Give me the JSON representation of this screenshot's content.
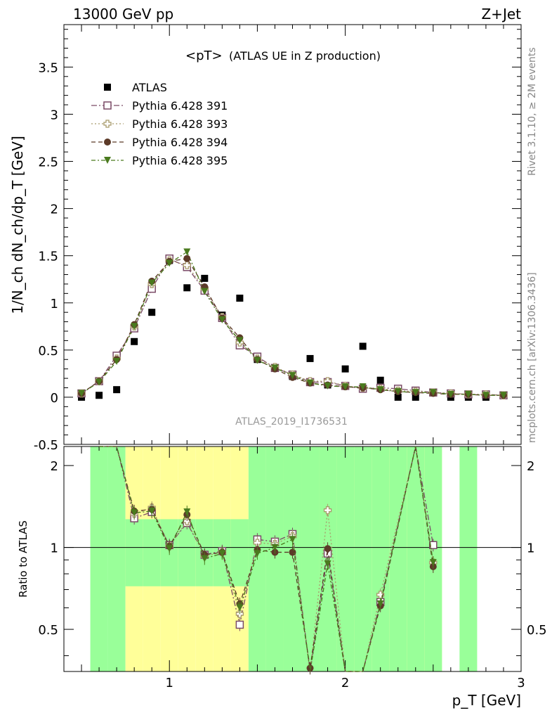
{
  "header": {
    "left": "13000 GeV pp",
    "right": "Z+Jet"
  },
  "side_labels": {
    "rivet": "Rivet 3.1.10, ≥ 2M events",
    "mcplots": "mcplots.cern.ch [arXiv:1306.3436]"
  },
  "chart_data": {
    "type": "scatter",
    "title": "<pT>",
    "subtitle": "(ATLAS UE in Z production)",
    "watermark": "ATLAS_2019_I1736531",
    "xlabel": "p_T [GeV]",
    "ylabel": "1/N_ch dN_ch/dp_T [GeV]",
    "ratio_ylabel": "Ratio to ATLAS",
    "xlim": [
      0.4,
      3.0
    ],
    "ylim": [
      -0.5,
      3.95
    ],
    "ratio_ylim": [
      0.35,
      2.35
    ],
    "x_ticks": [
      "1",
      "2",
      "3"
    ],
    "y_ticks": [
      "0",
      "0.5",
      "1",
      "1.5",
      "2",
      "2.5",
      "3",
      "3.5",
      "-0.5"
    ],
    "ratio_ticks": [
      "0.5",
      "1",
      "2"
    ],
    "legend_placement": "top-left",
    "x": [
      0.5,
      0.6,
      0.7,
      0.8,
      0.9,
      1.0,
      1.1,
      1.2,
      1.3,
      1.4,
      1.5,
      1.6,
      1.7,
      1.8,
      1.9,
      2.0,
      2.1,
      2.2,
      2.3,
      2.4,
      2.5,
      2.6,
      2.7,
      2.8,
      2.9
    ],
    "series": [
      {
        "name": "ATLAS",
        "color": "#000000",
        "marker": "square-filled",
        "values": [
          0.0,
          0.02,
          0.08,
          0.59,
          0.9,
          1.45,
          1.16,
          1.26,
          0.87,
          1.05,
          0.4,
          0.31,
          0.22,
          0.41,
          0.13,
          0.3,
          0.54,
          0.18,
          0.0,
          0.0,
          0.05,
          0.0,
          0.0,
          0.0,
          0.02
        ]
      },
      {
        "name": "Pythia 6.428 391",
        "color": "#7a4a66",
        "marker": "square-open",
        "dash": "8,3,2,3",
        "values": [
          0.04,
          0.17,
          0.44,
          0.73,
          1.15,
          1.47,
          1.38,
          1.13,
          0.84,
          0.55,
          0.43,
          0.31,
          0.24,
          0.16,
          0.16,
          0.12,
          0.09,
          0.1,
          0.09,
          0.07,
          0.05,
          0.04,
          0.03,
          0.03,
          0.02
        ]
      },
      {
        "name": "Pythia 6.428 393",
        "color": "#a89a6a",
        "marker": "cross-open",
        "dash": "2,3",
        "values": [
          0.04,
          0.17,
          0.41,
          0.75,
          1.2,
          1.45,
          1.4,
          1.15,
          0.85,
          0.58,
          0.41,
          0.32,
          0.24,
          0.17,
          0.17,
          0.12,
          0.1,
          0.09,
          0.07,
          0.06,
          0.05,
          0.04,
          0.03,
          0.03,
          0.02
        ]
      },
      {
        "name": "Pythia 6.428 394",
        "color": "#5c3a28",
        "marker": "circle-filled",
        "dash": "6,4",
        "values": [
          0.04,
          0.17,
          0.4,
          0.77,
          1.23,
          1.44,
          1.47,
          1.17,
          0.84,
          0.63,
          0.4,
          0.3,
          0.21,
          0.15,
          0.13,
          0.11,
          0.1,
          0.08,
          0.06,
          0.05,
          0.04,
          0.03,
          0.03,
          0.02,
          0.02
        ]
      },
      {
        "name": "Pythia 6.428 395",
        "color": "#4a7a1e",
        "marker": "triangle-down-filled",
        "dash": "6,3,2,3",
        "values": [
          0.04,
          0.16,
          0.38,
          0.75,
          1.21,
          1.42,
          1.54,
          1.12,
          0.82,
          0.6,
          0.39,
          0.31,
          0.23,
          0.15,
          0.12,
          0.11,
          0.11,
          0.08,
          0.06,
          0.05,
          0.05,
          0.03,
          0.03,
          0.02,
          0.02
        ]
      }
    ],
    "ratio_series": [
      {
        "name": "Pythia 6.428 391",
        "values": [
          null,
          2.6,
          2.6,
          1.28,
          1.35,
          1.02,
          1.23,
          0.94,
          0.97,
          0.52,
          1.07,
          1.05,
          1.12,
          0.33,
          0.95,
          0.34,
          0.3,
          0.63,
          2.6,
          1.02
        ]
      },
      {
        "name": "Pythia 6.428 393",
        "values": [
          null,
          2.6,
          2.6,
          1.33,
          1.4,
          1.01,
          1.25,
          0.93,
          0.96,
          0.57,
          1.04,
          1.03,
          1.1,
          0.35,
          1.37,
          0.34,
          0.3,
          0.67,
          2.6,
          0.88
        ]
      },
      {
        "name": "Pythia 6.428 394",
        "values": [
          null,
          2.6,
          2.6,
          1.36,
          1.38,
          1.01,
          1.32,
          0.94,
          0.96,
          0.62,
          0.98,
          0.96,
          0.96,
          0.36,
          0.99,
          0.33,
          0.3,
          0.61,
          2.6,
          0.85
        ]
      },
      {
        "name": "Pythia 6.428 395",
        "values": [
          null,
          2.6,
          2.6,
          1.34,
          1.36,
          0.99,
          1.35,
          0.91,
          0.95,
          0.6,
          0.95,
          1.0,
          1.07,
          0.34,
          0.87,
          0.33,
          0.3,
          0.62,
          2.6,
          0.88
        ]
      }
    ],
    "ratio_x": [
      0.5,
      0.6,
      0.7,
      0.8,
      0.9,
      1.0,
      1.1,
      1.2,
      1.3,
      1.4,
      1.5,
      1.6,
      1.7,
      1.8,
      1.9,
      2.0,
      2.1,
      2.2,
      2.4,
      2.5
    ],
    "uncertainty_bands": {
      "edges": [
        0.55,
        0.65,
        0.75,
        0.85,
        0.95,
        1.05,
        1.15,
        1.25,
        1.35,
        1.45,
        1.55,
        1.65,
        1.75,
        1.85,
        1.95,
        2.05,
        2.15,
        2.25,
        2.35,
        2.45,
        2.55,
        2.65,
        2.75
      ],
      "green_low": [
        0.35,
        0.35,
        0.72,
        0.72,
        0.72,
        0.72,
        0.72,
        0.72,
        0.72,
        0.35,
        0.35,
        0.35,
        0.35,
        0.35,
        0.35,
        0.35,
        0.35,
        0.35,
        0.35,
        0.35,
        null,
        0.35
      ],
      "green_high": [
        2.35,
        2.35,
        1.27,
        1.27,
        1.27,
        1.27,
        1.27,
        1.27,
        1.27,
        2.35,
        2.35,
        2.35,
        2.35,
        2.35,
        2.35,
        2.35,
        2.35,
        2.35,
        2.35,
        2.35,
        null,
        2.35
      ],
      "yellow_low": [
        null,
        null,
        0.35,
        0.35,
        0.35,
        0.35,
        0.35,
        0.35,
        0.35,
        null,
        0.35,
        0.35,
        0.35,
        0.35,
        0.35,
        0.35,
        0.35,
        0.35,
        0.35,
        0.35,
        null,
        null
      ],
      "yellow_high": [
        null,
        null,
        2.35,
        2.35,
        2.35,
        2.35,
        2.35,
        2.35,
        2.35,
        null,
        2.35,
        2.35,
        2.35,
        2.35,
        2.35,
        2.35,
        2.35,
        2.35,
        2.35,
        2.35,
        null,
        null
      ]
    }
  }
}
